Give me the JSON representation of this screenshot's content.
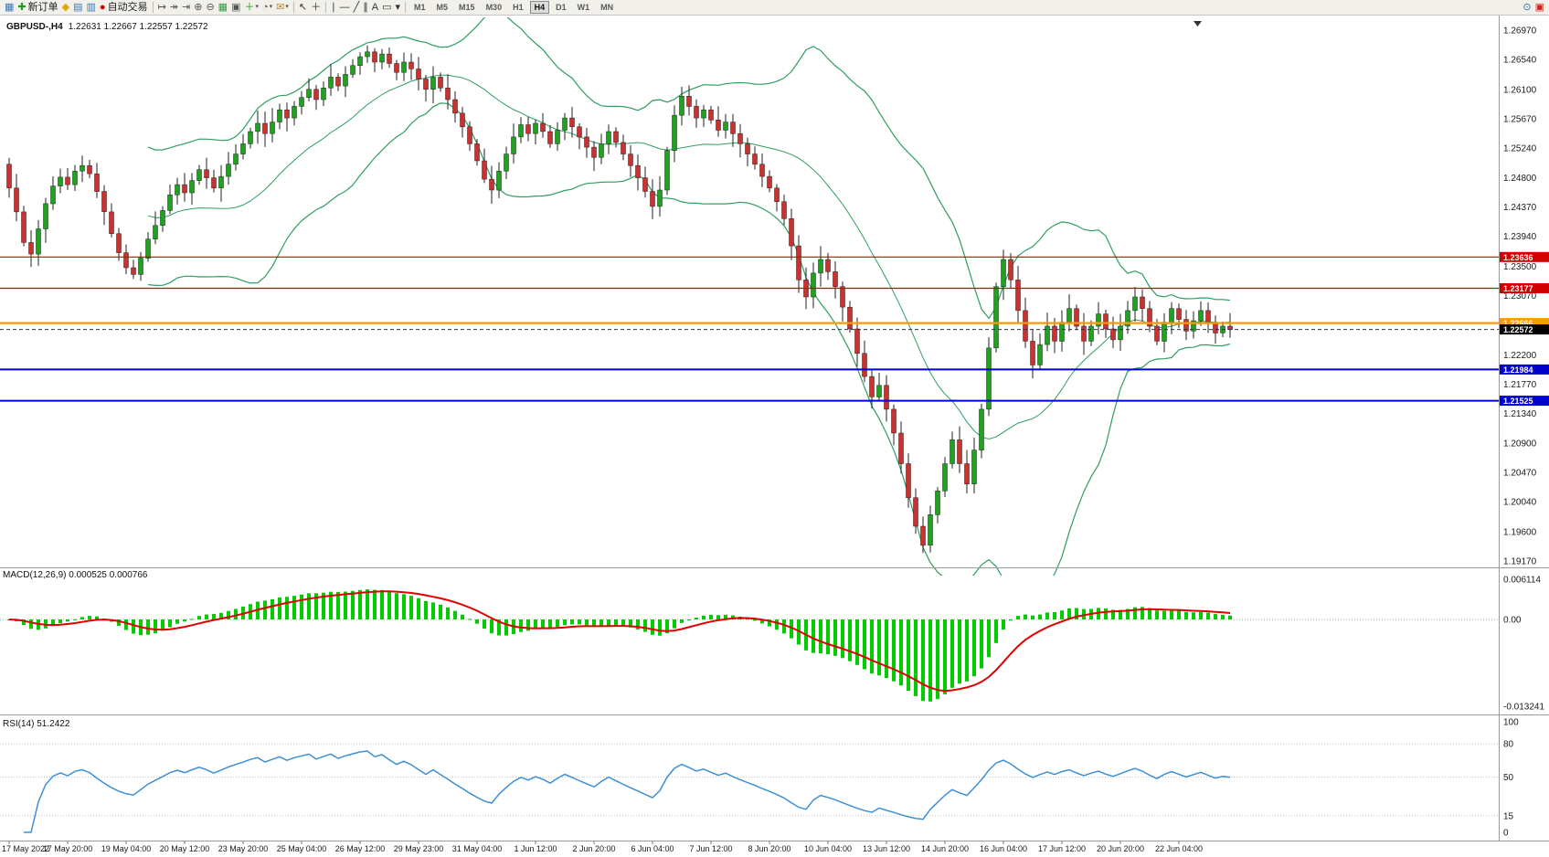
{
  "colors": {
    "bull": "#1ea31e",
    "bear": "#cc3030",
    "wick": "#222222",
    "bands": "#2f9e5f",
    "macd_hist": "#00cc00",
    "macd_signal": "#e00000",
    "rsi_line": "#3d8fd6",
    "axis_text": "#1a1a1a",
    "grid": "#9a9a9a",
    "line_red": "#d00000",
    "line_orange": "#ff9900",
    "line_blue": "#0000d0",
    "current_price_tag": "#000000"
  },
  "toolbar": {
    "items": [
      {
        "name": "charts-grid-icon",
        "glyph": "▦",
        "color": "#3a78c2"
      },
      {
        "name": "new-order-button",
        "label": "新订单",
        "glyph": "✚",
        "color": "#18a018"
      },
      {
        "name": "compass-icon",
        "glyph": "◆",
        "color": "#e3a600"
      },
      {
        "name": "market-watch-icon",
        "glyph": "▤",
        "color": "#3a78c2"
      },
      {
        "name": "terminal-icon",
        "glyph": "▥",
        "color": "#3a78c2"
      },
      {
        "name": "auto-trading-button",
        "label": "自动交易",
        "glyph": "●",
        "color": "#cc0000"
      },
      {
        "sep": true
      },
      {
        "name": "chart-shift-icon",
        "glyph": "↦",
        "color": "#555555"
      },
      {
        "name": "auto-scroll-icon",
        "glyph": "↠",
        "color": "#555555"
      },
      {
        "name": "chart-forward-icon",
        "glyph": "⇥",
        "color": "#555555"
      },
      {
        "name": "zoom-in-icon",
        "glyph": "⊕",
        "color": "#555555"
      },
      {
        "name": "zoom-out-icon",
        "glyph": "⊖",
        "color": "#555555"
      },
      {
        "name": "tile-windows-icon",
        "glyph": "▦",
        "color": "#2f9e44"
      },
      {
        "name": "arrange-windows-icon",
        "glyph": "▣",
        "color": "#555555"
      },
      {
        "name": "add-indicator-icon",
        "glyph": "＋",
        "color": "#18a018",
        "dropdown": true
      },
      {
        "name": "periods-icon",
        "glyph": "◔",
        "color": "#555555",
        "dropdown": true
      },
      {
        "name": "templates-icon",
        "glyph": "✉",
        "color": "#b98a2f",
        "dropdown": true
      },
      {
        "sep": true
      },
      {
        "name": "cursor-icon",
        "glyph": "↖",
        "color": "#333333"
      },
      {
        "name": "crosshair-icon",
        "glyph": "＋",
        "color": "#333333"
      },
      {
        "sep": true
      },
      {
        "name": "vertical-line-icon",
        "glyph": "∣",
        "color": "#333333"
      },
      {
        "name": "horizontal-line-icon",
        "glyph": "―",
        "color": "#333333"
      },
      {
        "name": "trendline-icon",
        "glyph": "╱",
        "color": "#333333"
      },
      {
        "name": "channel-icon",
        "glyph": "∥",
        "color": "#333333"
      },
      {
        "name": "text-icon",
        "glyph": "A",
        "color": "#333333"
      },
      {
        "name": "label-icon",
        "glyph": "▭",
        "color": "#333333"
      },
      {
        "name": "shapes-icon",
        "glyph": "▾",
        "color": "#333333"
      },
      {
        "sep": true
      }
    ],
    "timeframes": [
      {
        "label": "M1"
      },
      {
        "label": "M5"
      },
      {
        "label": "M15"
      },
      {
        "label": "M30"
      },
      {
        "label": "H1"
      },
      {
        "label": "H4",
        "active": true
      },
      {
        "label": "D1"
      },
      {
        "label": "W1"
      },
      {
        "label": "MN"
      }
    ],
    "right_items": [
      {
        "name": "search-icon",
        "glyph": "⊙",
        "color": "#2f6fb0"
      },
      {
        "name": "alert-icon",
        "glyph": "▣",
        "color": "#cc2222"
      }
    ]
  },
  "chart": {
    "title": "GBPUSD-,H4",
    "ohlc": "1.22631 1.22667 1.22557 1.22572",
    "price_axis": [
      "1.26970",
      "1.26540",
      "1.26100",
      "1.25670",
      "1.25240",
      "1.24800",
      "1.24370",
      "1.23940",
      "1.23500",
      "1.23070",
      "1.22630",
      "1.22200",
      "1.21770",
      "1.21340",
      "1.20900",
      "1.20470",
      "1.20040",
      "1.19600",
      "1.19170"
    ],
    "hlines": [
      {
        "value": 1.23636,
        "label": "1.23636",
        "color": "#d00000",
        "width": 1.2
      },
      {
        "value": 1.23177,
        "label": "1.23177",
        "color": "#d00000",
        "width": 1.2
      },
      {
        "value": 1.22666,
        "label": "1.22666",
        "color": "#ff9900",
        "width": 2.2
      },
      {
        "value": 1.21984,
        "label": "1.21984",
        "color": "#0000d0",
        "width": 2
      },
      {
        "value": 1.21525,
        "label": "1.21525",
        "color": "#0000d0",
        "width": 2
      }
    ],
    "current_price": {
      "value": 1.22572,
      "label": "1.22572",
      "color": "#000000"
    }
  },
  "macd": {
    "label": "MACD(12,26,9) 0.000525 0.000766",
    "axis": [
      "0.006114",
      "0.00",
      "-0.013241"
    ],
    "fast": 12,
    "slow": 26,
    "signal": 9
  },
  "rsi": {
    "label": "RSI(14) 51.2422",
    "axis": [
      "100",
      "80",
      "50",
      "15",
      "0"
    ],
    "levels": [
      80,
      50,
      15
    ],
    "period": 14
  },
  "time_axis": [
    "17 May 2022",
    "17 May 20:00",
    "19 May 04:00",
    "20 May 12:00",
    "23 May 20:00",
    "25 May 04:00",
    "26 May 12:00",
    "29 May 23:00",
    "31 May 04:00",
    "1 Jun 12:00",
    "2 Jun 20:00",
    "6 Jun 04:00",
    "7 Jun 12:00",
    "8 Jun 20:00",
    "10 Jun 04:00",
    "13 Jun 12:00",
    "14 Jun 20:00",
    "16 Jun 04:00",
    "17 Jun 12:00",
    "20 Jun 20:00",
    "22 Jun 04:00"
  ],
  "chart_data": {
    "type": "candlestick",
    "symbol": "GBPUSD",
    "timeframe": "H4",
    "y_range": [
      1.1917,
      1.2697
    ],
    "macd_range": [
      -0.013241,
      0.006114
    ],
    "rsi_range": [
      0,
      100
    ],
    "indicators": [
      "Bollinger Bands(20,2)",
      "MACD(12,26,9)",
      "RSI(14)"
    ],
    "first_open": 1.25,
    "candles_per_label": 8,
    "closes": [
      1.2465,
      1.243,
      1.2385,
      1.2368,
      1.2405,
      1.2442,
      1.2468,
      1.2481,
      1.247,
      1.249,
      1.2498,
      1.2486,
      1.246,
      1.243,
      1.2398,
      1.237,
      1.2348,
      1.2338,
      1.2362,
      1.239,
      1.241,
      1.2432,
      1.2455,
      1.247,
      1.2458,
      1.2476,
      1.2492,
      1.248,
      1.2465,
      1.2482,
      1.25,
      1.2515,
      1.253,
      1.2548,
      1.256,
      1.2545,
      1.2562,
      1.258,
      1.2568,
      1.2585,
      1.2598,
      1.261,
      1.2595,
      1.2612,
      1.2628,
      1.2615,
      1.2632,
      1.2645,
      1.2658,
      1.2665,
      1.265,
      1.2662,
      1.2648,
      1.2635,
      1.265,
      1.264,
      1.2625,
      1.261,
      1.2628,
      1.2612,
      1.2595,
      1.2575,
      1.2555,
      1.253,
      1.2505,
      1.2478,
      1.2462,
      1.249,
      1.2515,
      1.254,
      1.2558,
      1.2545,
      1.256,
      1.2548,
      1.253,
      1.255,
      1.2568,
      1.2555,
      1.254,
      1.2525,
      1.251,
      1.253,
      1.2548,
      1.2532,
      1.2515,
      1.2498,
      1.248,
      1.246,
      1.2438,
      1.2462,
      1.252,
      1.2572,
      1.26,
      1.2585,
      1.2568,
      1.258,
      1.2565,
      1.255,
      1.2562,
      1.2545,
      1.253,
      1.2515,
      1.25,
      1.2482,
      1.2465,
      1.2445,
      1.242,
      1.238,
      1.233,
      1.2305,
      1.234,
      1.236,
      1.2342,
      1.232,
      1.229,
      1.2258,
      1.2222,
      1.2188,
      1.2158,
      1.2175,
      1.214,
      1.2105,
      1.206,
      1.201,
      1.1968,
      1.194,
      1.1985,
      1.202,
      1.206,
      1.2095,
      1.206,
      1.203,
      1.208,
      1.214,
      1.223,
      1.232,
      1.236,
      1.233,
      1.2285,
      1.224,
      1.2205,
      1.2235,
      1.2262,
      1.224,
      1.2268,
      1.2288,
      1.2262,
      1.224,
      1.2262,
      1.228,
      1.2258,
      1.2242,
      1.2262,
      1.2285,
      1.2305,
      1.2288,
      1.2262,
      1.224,
      1.2268,
      1.2288,
      1.2272,
      1.2255,
      1.227,
      1.2285,
      1.2268,
      1.2252,
      1.2262,
      1.2257
    ]
  }
}
